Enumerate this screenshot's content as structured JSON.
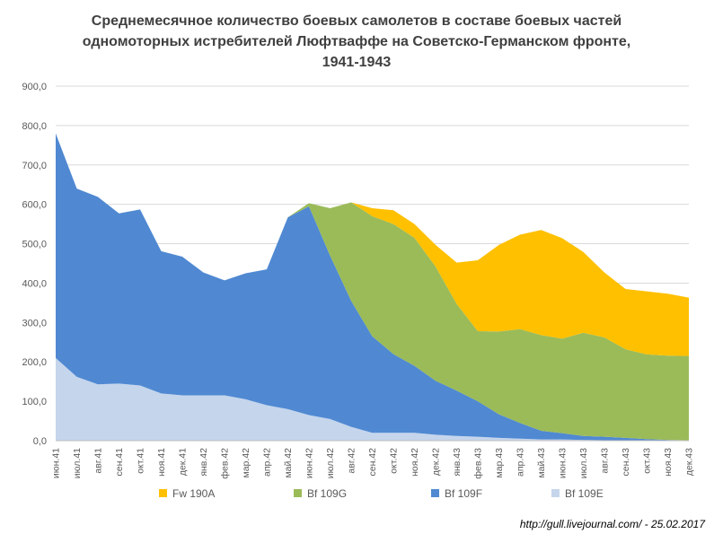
{
  "chart_data": {
    "type": "area",
    "stacked": true,
    "title_lines": [
      "Среднемесячное количество боевых самолетов в составе боевых частей",
      "одномоторных истребителей Люфтваффе на Советско-Германском фронте,",
      "1941-1943"
    ],
    "categories": [
      "июн.41",
      "июл.41",
      "авг.41",
      "сен.41",
      "окт.41",
      "ноя.41",
      "дек.41",
      "янв.42",
      "фев.42",
      "мар.42",
      "апр.42",
      "май.42",
      "июн.42",
      "июл.42",
      "авг.42",
      "сен.42",
      "окт.42",
      "ноя.42",
      "дек.42",
      "янв.43",
      "фев.43",
      "мар.43",
      "апр.43",
      "май.43",
      "июн.43",
      "июл.43",
      "авг.43",
      "сен.43",
      "окт.43",
      "ноя.43",
      "дек.43"
    ],
    "series": [
      {
        "name": "Bf 109E",
        "color": "#c5d5ec",
        "values": [
          210,
          162,
          143,
          145,
          140,
          120,
          115,
          115,
          115,
          105,
          90,
          80,
          65,
          55,
          35,
          20,
          20,
          20,
          15,
          12,
          10,
          7,
          5,
          3,
          3,
          2,
          1,
          1,
          0,
          0,
          0
        ]
      },
      {
        "name": "Bf 109F",
        "color": "#5089d2",
        "values": [
          570,
          478,
          476,
          432,
          447,
          361,
          352,
          312,
          292,
          320,
          345,
          487,
          530,
          415,
          320,
          245,
          200,
          170,
          137,
          115,
          90,
          60,
          40,
          22,
          16,
          10,
          9,
          6,
          4,
          2,
          1
        ]
      },
      {
        "name": "Bf 109G",
        "color": "#9bbb59",
        "values": [
          0,
          0,
          0,
          0,
          0,
          0,
          0,
          0,
          0,
          0,
          0,
          0,
          8,
          120,
          250,
          305,
          330,
          325,
          290,
          220,
          178,
          210,
          238,
          243,
          240,
          262,
          252,
          225,
          215,
          214,
          214
        ]
      },
      {
        "name": "Fw 190A",
        "color": "#ffc000",
        "values": [
          0,
          0,
          0,
          0,
          0,
          0,
          0,
          0,
          0,
          0,
          0,
          0,
          0,
          0,
          0,
          20,
          35,
          35,
          55,
          105,
          180,
          220,
          240,
          267,
          255,
          205,
          165,
          153,
          160,
          157,
          148
        ]
      }
    ],
    "legend_order": [
      "Fw 190A",
      "Bf 109G",
      "Bf 109F",
      "Bf 109E"
    ],
    "ylim": [
      0,
      900
    ],
    "yticks": [
      0,
      100,
      200,
      300,
      400,
      500,
      600,
      700,
      800,
      900
    ],
    "ytick_labels": [
      "0,0",
      "100,0",
      "200,0",
      "300,0",
      "400,0",
      "500,0",
      "600,0",
      "700,0",
      "800,0",
      "900,0"
    ],
    "grid": true,
    "legend_position": "bottom"
  },
  "footer": {
    "source": "http://gull.livejournal.com/  - 25.02.2017"
  }
}
